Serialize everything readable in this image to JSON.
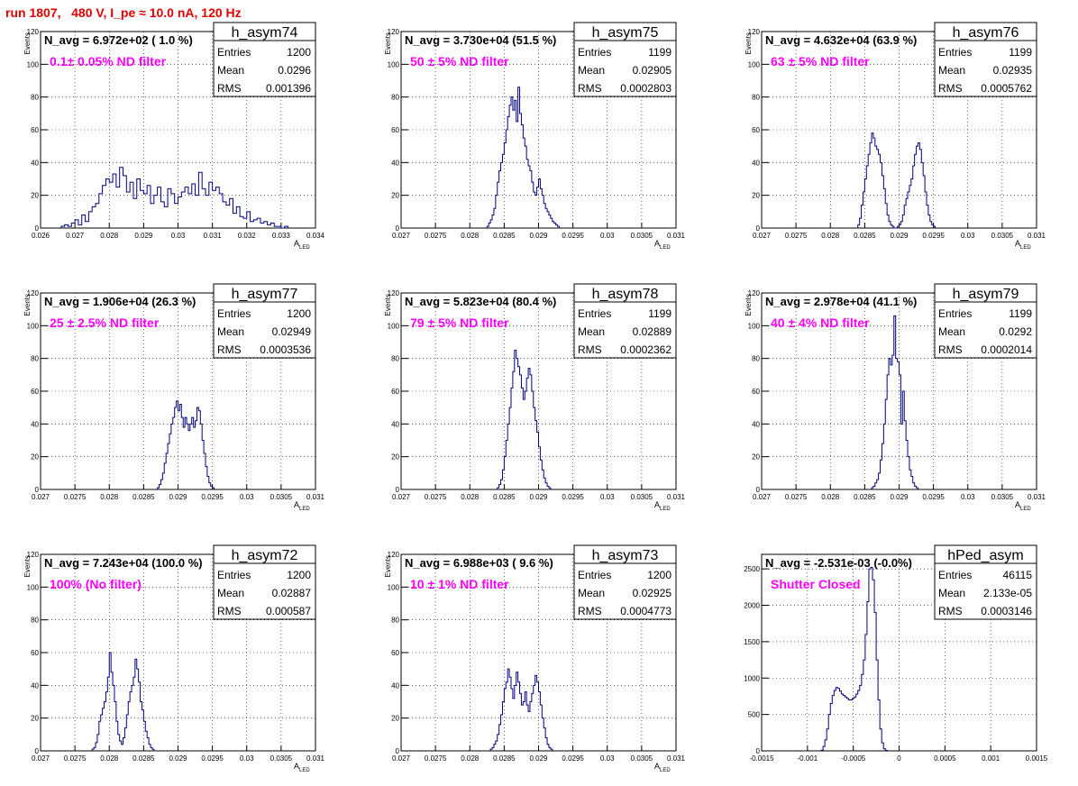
{
  "title": "run 1807,   480 V, I_pe ≈ 10.0 nA, 120 Hz",
  "colors": {
    "histogram": "#000080",
    "annotation": "#ff00ff",
    "title": "#e00000"
  },
  "chart_data": [
    {
      "type": "histogram",
      "name": "h_asym74",
      "navg": "N_avg = 6.972e+02 ( 1.0 %)",
      "annotation": "0.1± 0.05% ND filter",
      "stats": {
        "Entries": "1200",
        "Mean": "0.0296",
        "RMS": "0.001396"
      },
      "xlabel": "A",
      "xlabel_sub": "LED",
      "ylabel": "Events",
      "xlim": [
        0.026,
        0.034
      ],
      "ylim": [
        0,
        120
      ],
      "xticks": [
        "0.026",
        "0.027",
        "0.028",
        "0.029",
        "0.03",
        "0.031",
        "0.032",
        "0.033",
        "0.034"
      ],
      "yticks": [
        "0",
        "20",
        "40",
        "60",
        "80",
        "100",
        "120"
      ],
      "bins": {
        "start": 0.0266,
        "width": 0.0001,
        "counts": [
          1,
          2,
          1,
          3,
          5,
          2,
          8,
          4,
          10,
          13,
          15,
          21,
          26,
          30,
          28,
          33,
          25,
          37,
          32,
          22,
          28,
          18,
          30,
          23,
          21,
          26,
          15,
          20,
          25,
          16,
          13,
          24,
          21,
          15,
          19,
          22,
          25,
          21,
          27,
          20,
          34,
          24,
          20,
          28,
          23,
          25,
          21,
          16,
          14,
          18,
          9,
          13,
          7,
          6,
          10,
          4,
          5,
          6,
          3,
          4,
          2,
          3,
          1,
          1,
          0,
          1
        ]
      }
    },
    {
      "type": "histogram",
      "name": "h_asym75",
      "navg": "N_avg = 3.730e+04 (51.5 %)",
      "annotation": "50 ± 5% ND filter",
      "stats": {
        "Entries": "1199",
        "Mean": "0.02905",
        "RMS": "0.0002803"
      },
      "xlabel": "A",
      "xlabel_sub": "LED",
      "ylabel": "Events",
      "xlim": [
        0.027,
        0.031
      ],
      "ylim": [
        0,
        120
      ],
      "xticks": [
        "0.027",
        "0.0275",
        "0.028",
        "0.0285",
        "0.029",
        "0.0295",
        "0.03",
        "0.0305",
        "0.031"
      ],
      "yticks": [
        "0",
        "20",
        "40",
        "60",
        "80",
        "100",
        "120"
      ],
      "bins": {
        "start": 0.02825,
        "width": 2.5e-05,
        "counts": [
          1,
          3,
          5,
          8,
          12,
          20,
          28,
          35,
          40,
          45,
          52,
          60,
          68,
          75,
          80,
          72,
          78,
          65,
          86,
          70,
          63,
          55,
          50,
          42,
          38,
          35,
          28,
          22,
          20,
          25,
          30,
          24,
          20,
          15,
          12,
          10,
          8,
          6,
          4,
          3,
          2,
          1
        ]
      }
    },
    {
      "type": "histogram",
      "name": "h_asym76",
      "navg": "N_avg = 4.632e+04 (63.9 %)",
      "annotation": "63 ± 5% ND filter",
      "stats": {
        "Entries": "1199",
        "Mean": "0.02935",
        "RMS": "0.0005762"
      },
      "xlabel": "A",
      "xlabel_sub": "LED",
      "ylabel": "Events",
      "xlim": [
        0.027,
        0.031
      ],
      "ylim": [
        0,
        120
      ],
      "xticks": [
        "0.027",
        "0.0275",
        "0.028",
        "0.0285",
        "0.029",
        "0.0295",
        "0.03",
        "0.0305",
        "0.031"
      ],
      "yticks": [
        "0",
        "20",
        "40",
        "60",
        "80",
        "100",
        "120"
      ],
      "bins": {
        "start": 0.0284,
        "width": 2.5e-05,
        "counts": [
          2,
          6,
          14,
          22,
          30,
          38,
          45,
          52,
          58,
          55,
          50,
          48,
          45,
          40,
          32,
          24,
          15,
          8,
          4,
          2,
          1,
          0,
          0,
          1,
          2,
          4,
          8,
          14,
          18,
          22,
          26,
          30,
          38,
          45,
          50,
          52,
          48,
          40,
          32,
          22,
          14,
          8,
          4,
          2,
          1
        ]
      }
    },
    {
      "type": "histogram",
      "name": "h_asym77",
      "navg": "N_avg = 1.906e+04 (26.3 %)",
      "annotation": "25 ± 2.5% ND filter",
      "stats": {
        "Entries": "1200",
        "Mean": "0.02949",
        "RMS": "0.0003536"
      },
      "xlabel": "A",
      "xlabel_sub": "LED",
      "ylabel": "Events",
      "xlim": [
        0.027,
        0.031
      ],
      "ylim": [
        0,
        120
      ],
      "xticks": [
        "0.027",
        "0.0275",
        "0.028",
        "0.0285",
        "0.029",
        "0.0295",
        "0.03",
        "0.0305",
        "0.031"
      ],
      "yticks": [
        "0",
        "20",
        "40",
        "60",
        "80",
        "100",
        "120"
      ],
      "bins": {
        "start": 0.0287,
        "width": 2.5e-05,
        "counts": [
          1,
          3,
          6,
          10,
          16,
          22,
          28,
          34,
          40,
          44,
          50,
          54,
          48,
          52,
          44,
          38,
          44,
          40,
          36,
          40,
          44,
          38,
          42,
          50,
          48,
          40,
          30,
          22,
          14,
          8,
          4,
          2,
          1
        ]
      }
    },
    {
      "type": "histogram",
      "name": "h_asym78",
      "navg": "N_avg = 5.823e+04 (80.4 %)",
      "annotation": "79 ± 5% ND filter",
      "stats": {
        "Entries": "1199",
        "Mean": "0.02889",
        "RMS": "0.0002362"
      },
      "xlabel": "A",
      "xlabel_sub": "LED",
      "ylabel": "Events",
      "xlim": [
        0.027,
        0.031
      ],
      "ylim": [
        0,
        120
      ],
      "xticks": [
        "0.027",
        "0.0275",
        "0.028",
        "0.0285",
        "0.029",
        "0.0295",
        "0.03",
        "0.0305",
        "0.031"
      ],
      "yticks": [
        "0",
        "20",
        "40",
        "60",
        "80",
        "100",
        "120"
      ],
      "bins": {
        "start": 0.0284,
        "width": 2.5e-05,
        "counts": [
          1,
          3,
          6,
          12,
          20,
          30,
          40,
          50,
          62,
          72,
          85,
          80,
          75,
          70,
          62,
          55,
          60,
          68,
          74,
          70,
          60,
          50,
          42,
          35,
          26,
          18,
          12,
          7,
          4,
          2,
          1
        ]
      }
    },
    {
      "type": "histogram",
      "name": "h_asym79",
      "navg": "N_avg = 2.978e+04 (41.1 %)",
      "annotation": "40 ± 4% ND filter",
      "stats": {
        "Entries": "1199",
        "Mean": "0.0292",
        "RMS": "0.0002014"
      },
      "xlabel": "A",
      "xlabel_sub": "LED",
      "ylabel": "Events",
      "xlim": [
        0.027,
        0.031
      ],
      "ylim": [
        0,
        120
      ],
      "xticks": [
        "0.027",
        "0.0275",
        "0.028",
        "0.0285",
        "0.029",
        "0.0295",
        "0.03",
        "0.0305",
        "0.031"
      ],
      "yticks": [
        "0",
        "20",
        "40",
        "60",
        "80",
        "100",
        "120"
      ],
      "bins": {
        "start": 0.0286,
        "width": 2.5e-05,
        "counts": [
          1,
          2,
          4,
          6,
          10,
          18,
          28,
          40,
          55,
          70,
          80,
          76,
          82,
          106,
          80,
          78,
          70,
          40,
          60,
          42,
          30,
          20,
          12,
          8,
          4,
          2,
          1
        ]
      }
    },
    {
      "type": "histogram",
      "name": "h_asym72",
      "navg": "N_avg = 7.243e+04 (100.0 %)",
      "annotation": "100% (No filter)",
      "stats": {
        "Entries": "1200",
        "Mean": "0.02887",
        "RMS": "0.000587"
      },
      "xlabel": "A",
      "xlabel_sub": "LED",
      "ylabel": "Events",
      "xlim": [
        0.027,
        0.031
      ],
      "ylim": [
        0,
        120
      ],
      "xticks": [
        "0.027",
        "0.0275",
        "0.028",
        "0.0285",
        "0.029",
        "0.0295",
        "0.03",
        "0.0305",
        "0.031"
      ],
      "yticks": [
        "0",
        "20",
        "40",
        "60",
        "80",
        "100",
        "120"
      ],
      "bins": {
        "start": 0.02775,
        "width": 2.5e-05,
        "counts": [
          1,
          2,
          5,
          10,
          18,
          22,
          26,
          30,
          36,
          45,
          60,
          48,
          40,
          30,
          18,
          10,
          6,
          4,
          8,
          14,
          22,
          30,
          36,
          40,
          45,
          56,
          50,
          42,
          30,
          25,
          18,
          12,
          8,
          4,
          2,
          1
        ]
      }
    },
    {
      "type": "histogram",
      "name": "h_asym73",
      "navg": "N_avg = 6.988e+03 ( 9.6 %)",
      "annotation": "10 ± 1% ND filter",
      "stats": {
        "Entries": "1200",
        "Mean": "0.02925",
        "RMS": "0.0004773"
      },
      "xlabel": "A",
      "xlabel_sub": "LED",
      "ylabel": "Events",
      "xlim": [
        0.027,
        0.031
      ],
      "ylim": [
        0,
        120
      ],
      "xticks": [
        "0.027",
        "0.0275",
        "0.028",
        "0.0285",
        "0.029",
        "0.0295",
        "0.03",
        "0.0305",
        "0.031"
      ],
      "yticks": [
        "0",
        "20",
        "40",
        "60",
        "80",
        "100",
        "120"
      ],
      "bins": {
        "start": 0.0283,
        "width": 2.5e-05,
        "counts": [
          1,
          2,
          4,
          6,
          10,
          16,
          22,
          30,
          38,
          42,
          50,
          45,
          38,
          32,
          40,
          48,
          42,
          35,
          28,
          30,
          36,
          28,
          24,
          30,
          35,
          40,
          46,
          42,
          36,
          28,
          20,
          14,
          8,
          4,
          2,
          1
        ]
      }
    },
    {
      "type": "histogram",
      "name": "hPed_asym",
      "navg": "N_avg = -2.531e-03 (-0.0%)",
      "annotation": "Shutter Closed",
      "stats": {
        "Entries": "46115",
        "Mean": "2.133e-05",
        "RMS": "0.0003146"
      },
      "xlabel": "",
      "xlabel_sub": "",
      "ylabel": "",
      "xlim": [
        -0.0015,
        0.0015
      ],
      "ylim": [
        0,
        2700
      ],
      "xticks": [
        "-0.0015",
        "-0.001",
        "-0.0005",
        "0",
        "0.0005",
        "0.001",
        "0.0015"
      ],
      "yticks": [
        "0",
        "500",
        "1000",
        "1500",
        "2000",
        "2500"
      ],
      "bins": {
        "start": -0.00085,
        "width": 2e-05,
        "counts": [
          10,
          60,
          150,
          300,
          500,
          650,
          760,
          830,
          870,
          860,
          820,
          780,
          760,
          740,
          720,
          700,
          700,
          720,
          740,
          780,
          830,
          900,
          1050,
          1250,
          1600,
          2050,
          2500,
          2520,
          2350,
          1900,
          1250,
          700,
          300,
          110,
          30,
          8
        ]
      }
    }
  ]
}
